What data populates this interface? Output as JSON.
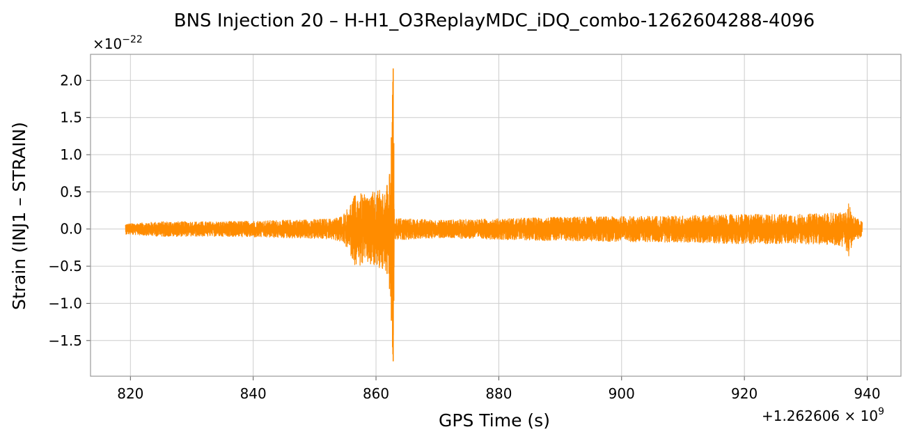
{
  "chart_data": {
    "type": "line",
    "title": "BNS Injection 20 – H-H1_O3ReplayMDC_iDQ_combo-1262604288-4096",
    "xlabel": "GPS Time (s)",
    "ylabel": "Strain (INJ1 – STRAIN)",
    "x_offset_label": "+1.262606 × 10",
    "x_offset_exponent": "9",
    "y_scale_label": "×10",
    "y_scale_exponent": "−22",
    "xlim": [
      813.5,
      945.5
    ],
    "ylim": [
      -1.98,
      2.35
    ],
    "x_ticks": [
      820,
      840,
      860,
      880,
      900,
      920,
      940
    ],
    "x_tick_labels": [
      "820",
      "840",
      "860",
      "880",
      "900",
      "920",
      "940"
    ],
    "y_ticks": [
      2.0,
      1.5,
      1.0,
      0.5,
      0.0,
      -0.5,
      -1.0,
      -1.5
    ],
    "y_tick_labels": [
      "2.0",
      "1.5",
      "1.0",
      "0.5",
      "0.0",
      "−0.5",
      "−1.0",
      "−1.5"
    ],
    "grid": true,
    "line_color": "#ff8c00",
    "series": [
      {
        "x": [
          819.2,
          825,
          830,
          835,
          840,
          845,
          850,
          853,
          854.5,
          855.5,
          856.5,
          857.5,
          858.5,
          859.5,
          860.5,
          861.5,
          862.0,
          862.3,
          862.6,
          862.8,
          863.0,
          865,
          870,
          880,
          890,
          900,
          910,
          920,
          930,
          935,
          936.5,
          937.0,
          937.2,
          937.5,
          938,
          939.2
        ],
        "envelope_upper": [
          0.07,
          0.1,
          0.1,
          0.1,
          0.11,
          0.12,
          0.13,
          0.14,
          0.18,
          0.3,
          0.45,
          0.48,
          0.45,
          0.5,
          0.52,
          0.55,
          0.62,
          0.8,
          1.45,
          2.16,
          0.15,
          0.14,
          0.12,
          0.14,
          0.16,
          0.17,
          0.18,
          0.2,
          0.2,
          0.22,
          0.22,
          0.38,
          0.3,
          0.2,
          0.16,
          0.1
        ],
        "envelope_lower": [
          -0.07,
          -0.1,
          -0.1,
          -0.1,
          -0.11,
          -0.12,
          -0.13,
          -0.14,
          -0.18,
          -0.28,
          -0.48,
          -0.5,
          -0.46,
          -0.52,
          -0.55,
          -0.58,
          -0.62,
          -0.9,
          -1.4,
          -1.78,
          -0.15,
          -0.14,
          -0.12,
          -0.14,
          -0.16,
          -0.17,
          -0.18,
          -0.2,
          -0.2,
          -0.22,
          -0.25,
          -0.45,
          -0.35,
          -0.2,
          -0.16,
          -0.1
        ]
      }
    ]
  }
}
